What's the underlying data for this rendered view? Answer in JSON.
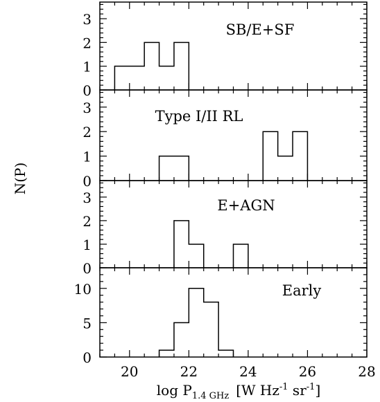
{
  "figure": {
    "ylabel": "N(P)",
    "xlabel_parts": {
      "main": "log P",
      "sub": "1.4 GHz",
      "unit_open": "[W Hz",
      "sup1": "-1",
      "unit_mid": " sr",
      "sup2": "-1",
      "unit_close": "]"
    }
  },
  "chart_data": [
    {
      "type": "histogram",
      "label": "SB/E+SF",
      "xlim": [
        19,
        28
      ],
      "ylim": [
        0,
        3.7
      ],
      "yticks": [
        0,
        1,
        2,
        3
      ],
      "bin_width": 0.5,
      "bins": [
        [
          19.75,
          1
        ],
        [
          20.25,
          1
        ],
        [
          20.75,
          2
        ],
        [
          21.25,
          1
        ],
        [
          21.75,
          2
        ]
      ]
    },
    {
      "type": "histogram",
      "label": "Type I/II RL",
      "xlim": [
        19,
        28
      ],
      "ylim": [
        0,
        3.7
      ],
      "yticks": [
        0,
        1,
        2,
        3
      ],
      "bin_width": 0.5,
      "bins": [
        [
          21.25,
          1
        ],
        [
          21.75,
          1
        ],
        [
          24.75,
          2
        ],
        [
          25.25,
          1
        ],
        [
          25.75,
          2
        ]
      ]
    },
    {
      "type": "histogram",
      "label": "E+AGN",
      "xlim": [
        19,
        28
      ],
      "ylim": [
        0,
        3.7
      ],
      "yticks": [
        0,
        1,
        2,
        3
      ],
      "bin_width": 0.5,
      "bins": [
        [
          21.75,
          2
        ],
        [
          22.25,
          1
        ],
        [
          23.75,
          1
        ]
      ]
    },
    {
      "type": "histogram",
      "label": "Early",
      "xlim": [
        19,
        28
      ],
      "ylim": [
        0,
        13
      ],
      "yticks": [
        0,
        5,
        10
      ],
      "bin_width": 0.5,
      "bins": [
        [
          21.25,
          1
        ],
        [
          21.75,
          5
        ],
        [
          22.25,
          10
        ],
        [
          22.75,
          8
        ],
        [
          23.25,
          1
        ]
      ],
      "xticks": [
        20,
        22,
        24,
        26,
        28
      ]
    }
  ]
}
